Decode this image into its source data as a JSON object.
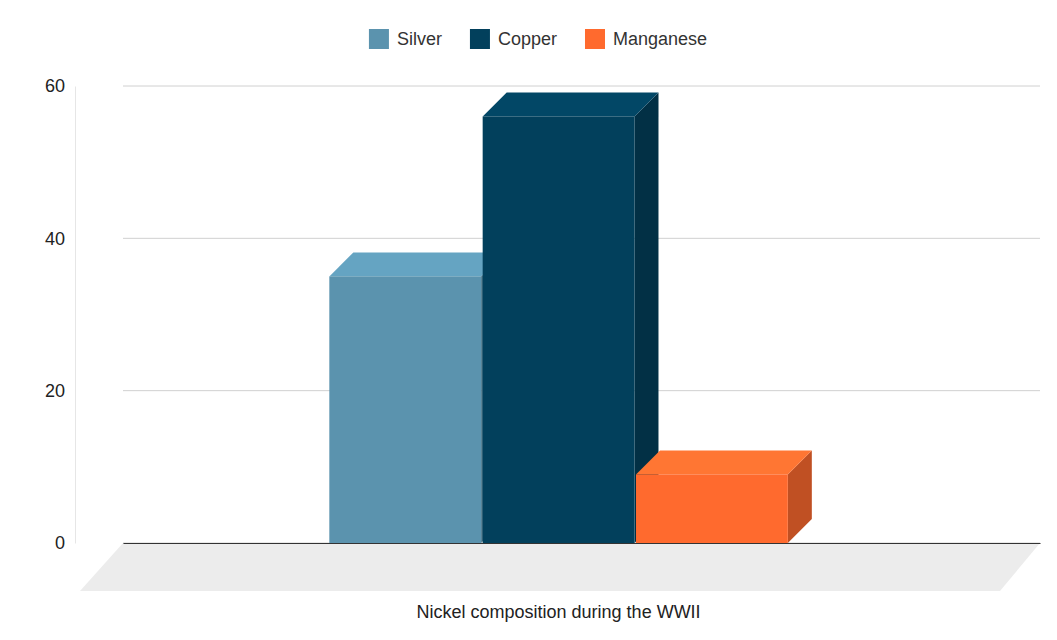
{
  "chart_data": {
    "type": "bar",
    "categories": [
      "Nickel composition during the WWII"
    ],
    "series": [
      {
        "name": "Silver",
        "color": "#5b93ae",
        "values": [
          35
        ]
      },
      {
        "name": "Copper",
        "color": "#02405c",
        "values": [
          56
        ]
      },
      {
        "name": "Manganese",
        "color": "#ff6a2e",
        "values": [
          9
        ]
      }
    ],
    "ylim": [
      0,
      60
    ],
    "yticks": [
      0,
      20,
      40,
      60
    ],
    "grid": true,
    "legend": "top"
  }
}
